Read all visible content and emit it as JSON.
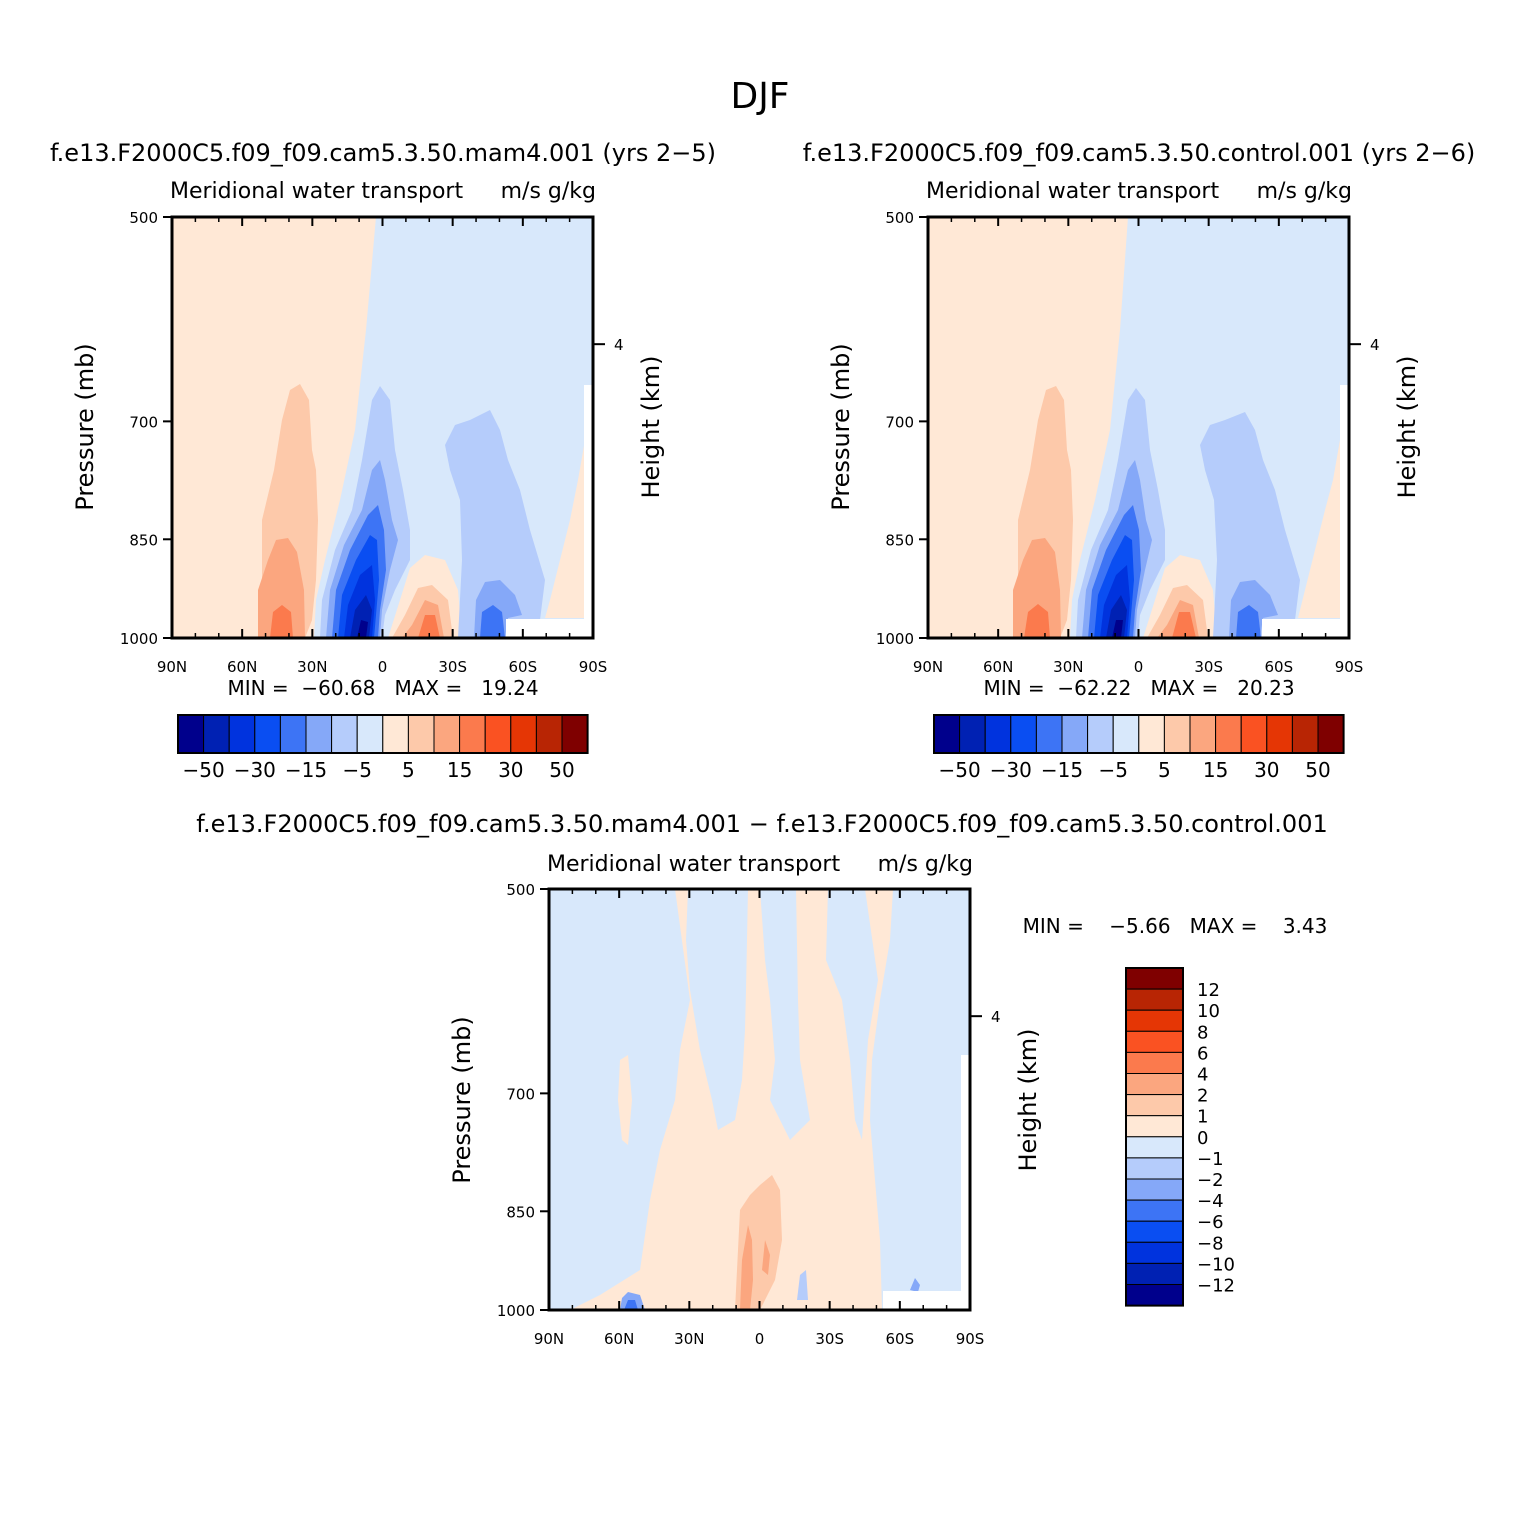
{
  "figure": {
    "title": "DJF",
    "panels": [
      {
        "title": "f.e13.F2000C5.f09_f09.cam5.3.50.mam4.001 (yrs 2−5)",
        "subtitle_left": "Meridional water transport",
        "subtitle_right": "m/s g/kg",
        "ylabel": "Pressure (mb)",
        "ylabel_right": "Height (km)",
        "stats": "MIN =  −60.68   MAX =   19.24"
      },
      {
        "title": "f.e13.F2000C5.f09_f09.cam5.3.50.control.001 (yrs 2−6)",
        "subtitle_left": "Meridional water transport",
        "subtitle_right": "m/s g/kg",
        "ylabel": "Pressure (mb)",
        "ylabel_right": "Height (km)",
        "stats": "MIN =  −62.22   MAX =   20.23"
      },
      {
        "title": "f.e13.F2000C5.f09_f09.cam5.3.50.mam4.001 − f.e13.F2000C5.f09_f09.cam5.3.50.control.001",
        "subtitle_left": "Meridional water transport",
        "subtitle_right": "m/s g/kg",
        "ylabel": "Pressure (mb)",
        "ylabel_right": "Height (km)",
        "stats": "MIN =    −5.66   MAX =    3.43"
      }
    ]
  },
  "colors": {
    "div14": [
      "#00008c",
      "#0021b3",
      "#0033de",
      "#0a4ef2",
      "#3d74f5",
      "#85a8f8",
      "#b5ccfb",
      "#d8e8fb",
      "#ffe8d6",
      "#fdc9aa",
      "#fba67f",
      "#fb7a4d",
      "#fa5222",
      "#e53605",
      "#b82504",
      "#7f0000"
    ]
  },
  "chart_data": [
    {
      "type": "heatmap",
      "plot": "contour",
      "title": "f.e13.F2000C5.f09_f09.cam5.3.50.mam4.001 (yrs 2−5)",
      "x_ticks": [
        "90N",
        "60N",
        "30N",
        "0",
        "30S",
        "60S",
        "90S"
      ],
      "y_ticks": [
        500,
        700,
        850,
        1000
      ],
      "y_scale": "log",
      "ylim": [
        1000,
        500
      ],
      "right_axis_ticks": [
        4
      ],
      "contour_levels": [
        -50,
        -40,
        -30,
        -20,
        -15,
        -10,
        -5,
        0,
        5,
        10,
        15,
        20,
        30,
        40,
        50
      ],
      "colorbar_labels": [
        "−50",
        "−30",
        "−15",
        "−5",
        "5",
        "15",
        "30",
        "50"
      ],
      "min": -60.68,
      "max": 19.24,
      "features": [
        {
          "lat": 10,
          "p_top": 700,
          "p_bottom": 1000,
          "peak": -60.68
        },
        {
          "lat": 40,
          "p_top": 695,
          "p_bottom": 1000,
          "peak": 18
        },
        {
          "lat": -20,
          "p_top": 880,
          "p_bottom": 1000,
          "peak": 19.24
        },
        {
          "lat": -48,
          "p_top": 720,
          "p_bottom": 1000,
          "peak": -25
        }
      ]
    },
    {
      "type": "heatmap",
      "plot": "contour",
      "title": "f.e13.F2000C5.f09_f09.cam5.3.50.control.001 (yrs 2−6)",
      "x_ticks": [
        "90N",
        "60N",
        "30N",
        "0",
        "30S",
        "60S",
        "90S"
      ],
      "y_ticks": [
        500,
        700,
        850,
        1000
      ],
      "y_scale": "log",
      "ylim": [
        1000,
        500
      ],
      "right_axis_ticks": [
        4
      ],
      "contour_levels": [
        -50,
        -40,
        -30,
        -20,
        -15,
        -10,
        -5,
        0,
        5,
        10,
        15,
        20,
        30,
        40,
        50
      ],
      "colorbar_labels": [
        "−50",
        "−30",
        "−15",
        "−5",
        "5",
        "15",
        "30",
        "50"
      ],
      "min": -62.22,
      "max": 20.23,
      "features": [
        {
          "lat": 10,
          "p_top": 700,
          "p_bottom": 1000,
          "peak": -62.22
        },
        {
          "lat": 40,
          "p_top": 695,
          "p_bottom": 1000,
          "peak": 19
        },
        {
          "lat": -20,
          "p_top": 880,
          "p_bottom": 1000,
          "peak": 20.23
        },
        {
          "lat": -48,
          "p_top": 720,
          "p_bottom": 1000,
          "peak": -25
        }
      ]
    },
    {
      "type": "heatmap",
      "plot": "contour",
      "title": "f.e13.F2000C5.f09_f09.cam5.3.50.mam4.001 − f.e13.F2000C5.f09_f09.cam5.3.50.control.001",
      "x_ticks": [
        "90N",
        "60N",
        "30N",
        "0",
        "30S",
        "60S",
        "90S"
      ],
      "y_ticks": [
        500,
        700,
        850,
        1000
      ],
      "y_scale": "log",
      "ylim": [
        1000,
        500
      ],
      "right_axis_ticks": [
        4
      ],
      "contour_levels": [
        -12,
        -10,
        -8,
        -6,
        -4,
        -2,
        -1,
        0,
        1,
        2,
        4,
        6,
        8,
        10,
        12
      ],
      "colorbar_labels": [
        "12",
        "10",
        "8",
        "6",
        "4",
        "2",
        "1",
        "0",
        "−1",
        "−2",
        "−4",
        "−6",
        "−8",
        "−10",
        "−12"
      ],
      "min": -5.66,
      "max": 3.43
    }
  ]
}
